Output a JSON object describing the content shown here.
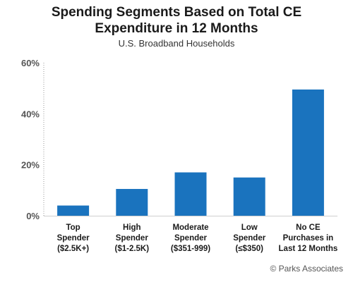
{
  "chart_data": {
    "type": "bar",
    "title_lines": [
      "Spending Segments Based on Total CE",
      "Expenditure in 12 Months"
    ],
    "subtitle": "U.S. Broadband Households",
    "categories": [
      [
        "Top",
        "Spender",
        "($2.5K+)"
      ],
      [
        "High",
        "Spender",
        "($1-2.5K)"
      ],
      [
        "Moderate",
        "Spender",
        "($351-999)"
      ],
      [
        "Low",
        "Spender",
        "(≤$350)"
      ],
      [
        "No CE",
        "Purchases in",
        "Last 12 Months"
      ]
    ],
    "values": [
      4,
      10.5,
      17,
      15,
      49.5
    ],
    "ylim": [
      0,
      60
    ],
    "yticks": [
      0,
      20,
      40,
      60
    ],
    "ytick_labels": [
      "0%",
      "20%",
      "40%",
      "60%"
    ],
    "bar_color": "#1a73be",
    "grid": false,
    "source": "© Parks Associates"
  }
}
